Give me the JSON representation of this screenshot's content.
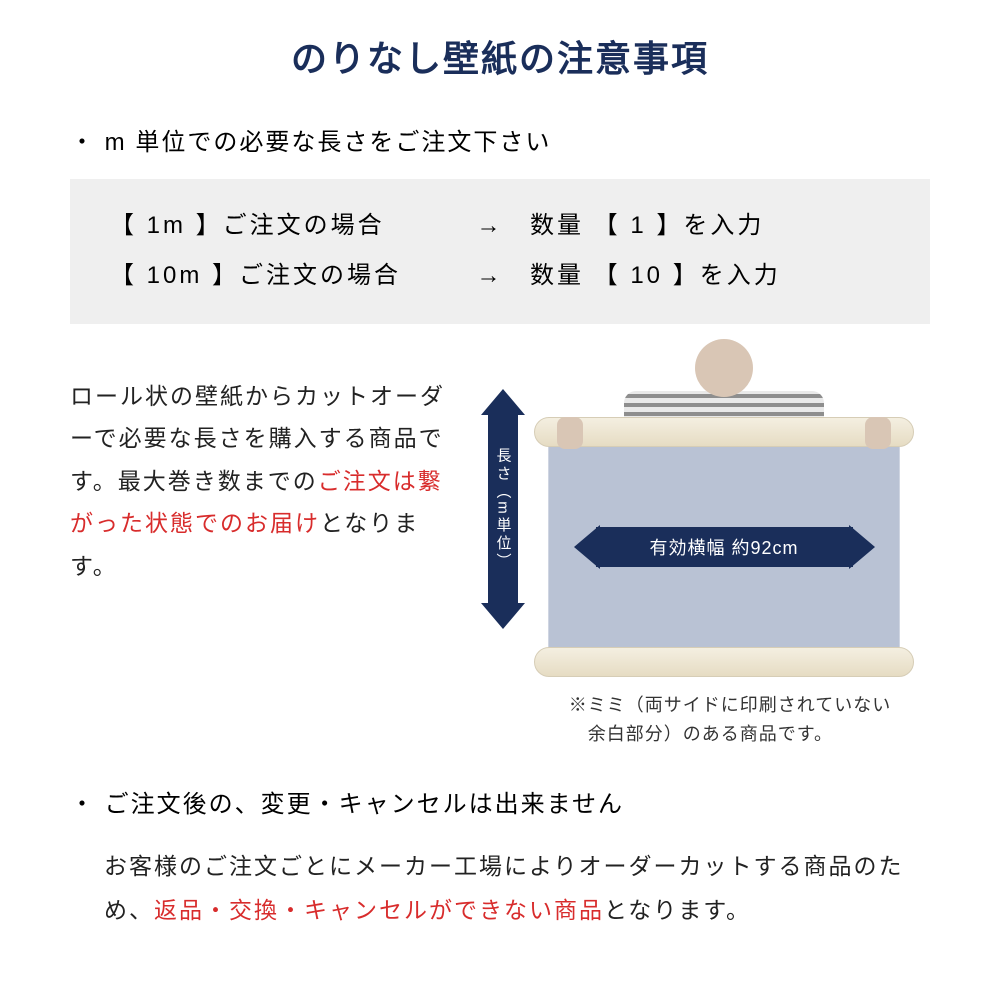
{
  "colors": {
    "title": "#1a2e5a",
    "accent_red": "#d82c2c",
    "arrow_fill": "#1a2e5a",
    "example_bg": "#efefef",
    "sheet_bg": "#b9c2d4",
    "text": "#222222"
  },
  "title": "のりなし壁紙の注意事項",
  "bullet1": "・ m 単位での必要な長さをご注文下さい",
  "example": {
    "row1_left": "【 1m 】ご注文の場合",
    "row1_arrow": "→",
    "row1_right": "数量 【 1 】を入力",
    "row2_left": "【 10m 】ご注文の場合",
    "row2_arrow": "→",
    "row2_right": "数量 【 10 】を入力"
  },
  "mid_text": {
    "p1": "ロール状の壁紙からカットオーダーで必要な長さを購入する商品です。最大巻き数までの",
    "p1_red": "ご注文は繋がった状態でのお届け",
    "p1_tail": "となります。"
  },
  "diagram": {
    "v_label": "長さ（m単位）",
    "h_label": "有効横幅 約92cm",
    "note_line1": "※ミミ（両サイドに印刷されていない",
    "note_line2": "　余白部分）のある商品です。"
  },
  "bullet2": "・ ご注文後の、変更・キャンセルは出来ません",
  "body2": {
    "pre": "お客様のご注文ごとにメーカー工場によりオーダーカットする商品のため、",
    "red": "返品・交換・キャンセルができない商品",
    "post": "となります。"
  }
}
